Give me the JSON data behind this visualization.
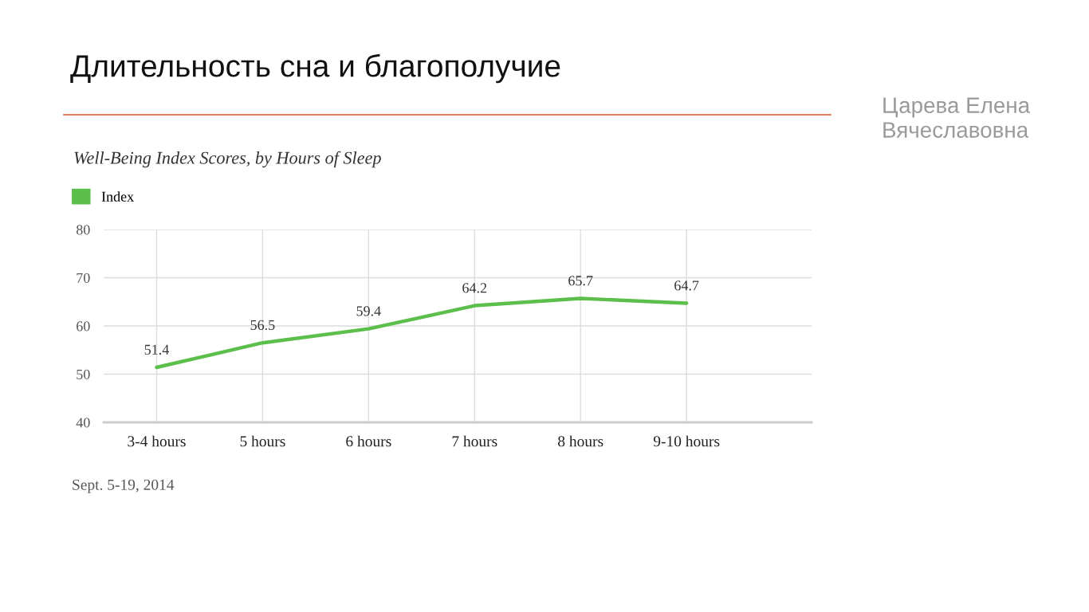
{
  "chart_data": {
    "type": "line",
    "title": "Длительность сна и благополучие",
    "subtitle": "Well-Being Index Scores, by Hours of Sleep",
    "annotations": [
      "Sept. 5-19, 2014",
      "Царева Елена\nВячеславовна"
    ],
    "categories": [
      "3-4 hours",
      "5 hours",
      "6 hours",
      "7 hours",
      "8 hours",
      "9-10 hours"
    ],
    "series": [
      {
        "name": "Index",
        "color": "#5cbf4c",
        "values": [
          51.4,
          56.5,
          59.4,
          64.2,
          65.7,
          64.7
        ]
      }
    ],
    "ylim": [
      40,
      80
    ],
    "yticks": [
      40,
      50,
      60,
      70,
      80
    ],
    "grid": true,
    "legend": "top left",
    "data_labels": true
  }
}
